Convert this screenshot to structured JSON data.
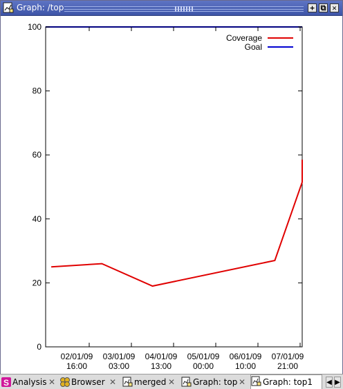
{
  "window": {
    "title": "Graph: /top"
  },
  "tabs": [
    {
      "label": "Analysis",
      "icon": "analysis-icon",
      "close": "✕"
    },
    {
      "label": "Browser",
      "icon": "browser-icon",
      "close": "✕"
    },
    {
      "label": "merged",
      "icon": "graph-icon",
      "close": "✕"
    },
    {
      "label": "Graph: top",
      "icon": "graph-icon",
      "close": "✕"
    },
    {
      "label": "Graph: top1",
      "icon": "graph-icon",
      "close": "✕"
    }
  ],
  "chart_data": {
    "type": "line",
    "title": "",
    "xlabel": "",
    "ylabel": "",
    "ylim": [
      0,
      100
    ],
    "y_ticks": [
      "0",
      "20",
      "40",
      "60",
      "80",
      "100"
    ],
    "x_ticks": [
      {
        "line1": "02/01/09",
        "line2": "16:00"
      },
      {
        "line1": "03/01/09",
        "line2": "03:00"
      },
      {
        "line1": "04/01/09",
        "line2": "13:00"
      },
      {
        "line1": "05/01/09",
        "line2": "00:00"
      },
      {
        "line1": "06/01/09",
        "line2": "10:00"
      },
      {
        "line1": "07/01/09",
        "line2": "21:00"
      }
    ],
    "legend_position": "top-right",
    "series": [
      {
        "name": "Coverage",
        "color": "#e00000",
        "x_ticks_units": [
          -0.9,
          0.3,
          1.5,
          4.4,
          5.5,
          6.6
        ],
        "values": [
          25,
          26,
          19,
          27,
          51.5,
          58.5
        ]
      },
      {
        "name": "Goal",
        "color": "#0000d0",
        "values": []
      }
    ]
  }
}
